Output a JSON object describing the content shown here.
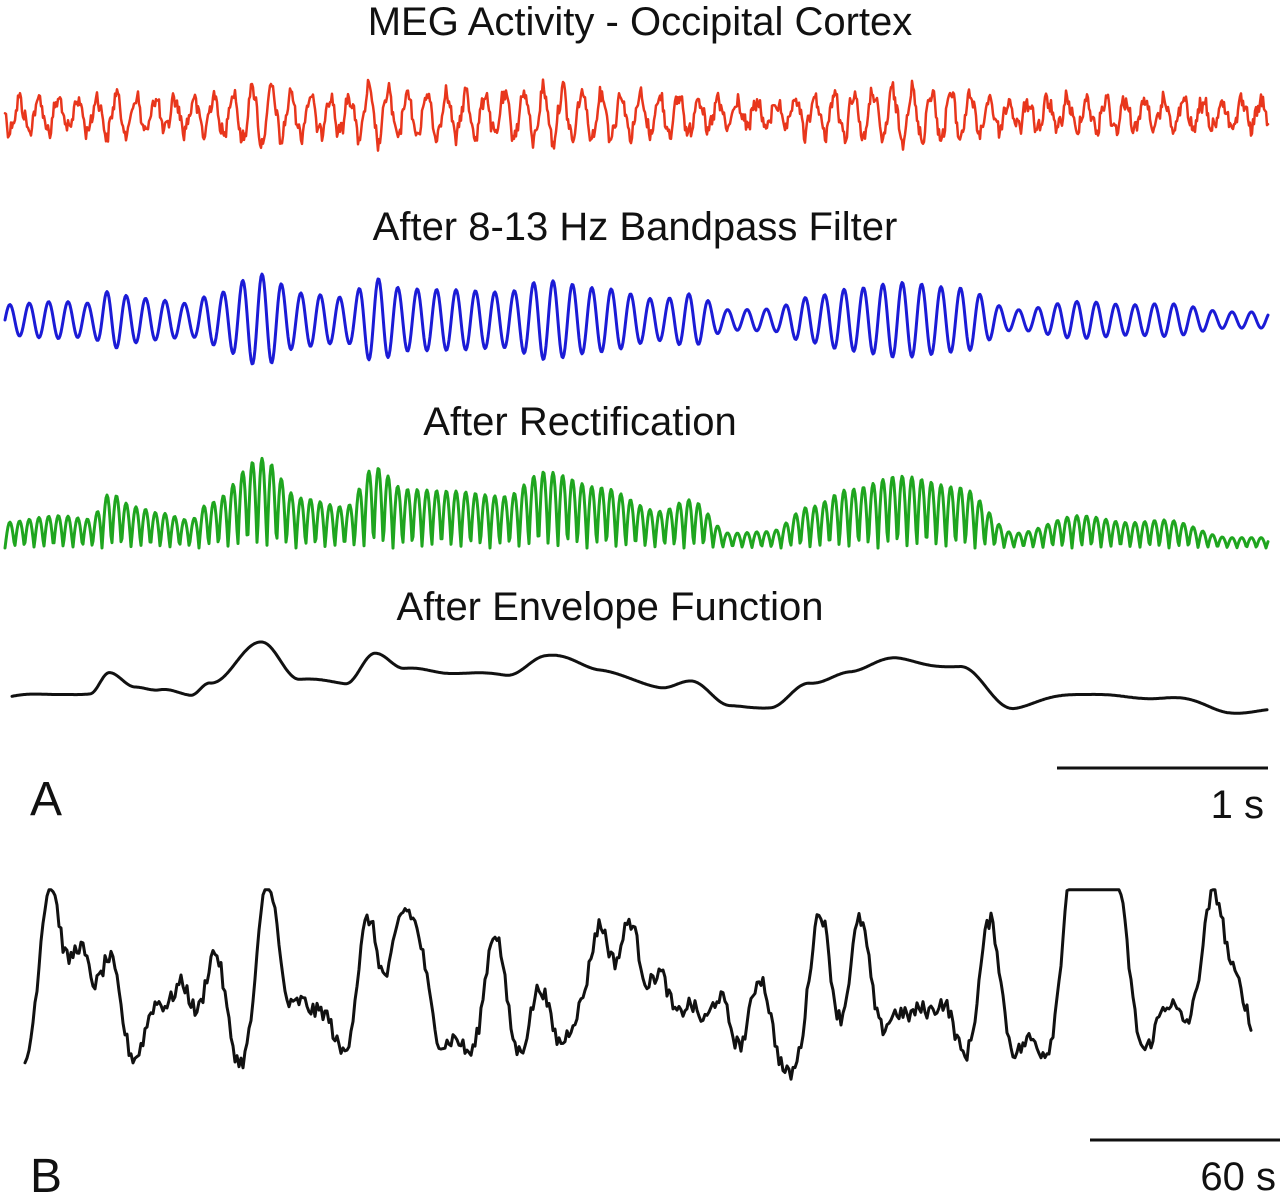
{
  "panel_a": {
    "label": "A",
    "traces": [
      {
        "title": "MEG Activity - Occipital Cortex",
        "color": "#e8361c"
      },
      {
        "title": "After 8-13 Hz Bandpass Filter",
        "color": "#1b1bd6"
      },
      {
        "title": "After Rectification",
        "color": "#1fa51f"
      },
      {
        "title": "After Envelope Function",
        "color": "#111111"
      }
    ],
    "scale_bar": {
      "label": "1 s"
    }
  },
  "panel_b": {
    "label": "B",
    "trace_color": "#111111",
    "scale_bar": {
      "label": "60 s"
    }
  }
}
